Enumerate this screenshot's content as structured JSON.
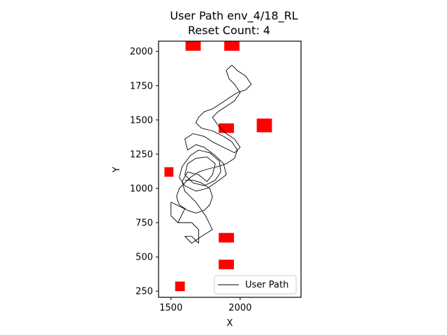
{
  "chart_data": {
    "type": "line",
    "title": "User Path env_4/18_RL",
    "subtitle": "Reset Count: 4",
    "xlabel": "X",
    "ylabel": "Y",
    "xlim": [
      1410,
      2440
    ],
    "ylim": [
      205,
      2075
    ],
    "xticks": [
      1500,
      2000
    ],
    "xtick_labels": [
      "1500",
      "2000"
    ],
    "yticks": [
      250,
      500,
      750,
      1000,
      1250,
      1500,
      1750,
      2000
    ],
    "ytick_labels": [
      "250",
      "500",
      "750",
      "1000",
      "1250",
      "1500",
      "1750",
      "2000"
    ],
    "grid": false,
    "legend": {
      "position": "lower-right",
      "entries": [
        "User Path"
      ]
    },
    "series": [
      {
        "name": "User Path",
        "color": "#000000",
        "points": [
          [
            1550,
            750
          ],
          [
            1500,
            800
          ],
          [
            1500,
            900
          ],
          [
            1600,
            850
          ],
          [
            1550,
            750
          ],
          [
            1650,
            750
          ],
          [
            1700,
            700
          ],
          [
            1700,
            600
          ],
          [
            1650,
            650
          ],
          [
            1600,
            650
          ],
          [
            1650,
            600
          ],
          [
            1720,
            650
          ],
          [
            1800,
            700
          ],
          [
            1750,
            800
          ],
          [
            1680,
            900
          ],
          [
            1600,
            980
          ],
          [
            1580,
            1050
          ],
          [
            1620,
            1120
          ],
          [
            1700,
            1100
          ],
          [
            1760,
            1050
          ],
          [
            1800,
            1100
          ],
          [
            1820,
            1180
          ],
          [
            1760,
            1230
          ],
          [
            1680,
            1220
          ],
          [
            1620,
            1180
          ],
          [
            1600,
            1100
          ],
          [
            1660,
            1040
          ],
          [
            1740,
            1020
          ],
          [
            1820,
            1060
          ],
          [
            1860,
            1120
          ],
          [
            1850,
            1200
          ],
          [
            1780,
            1260
          ],
          [
            1700,
            1280
          ],
          [
            1640,
            1240
          ],
          [
            1580,
            1160
          ],
          [
            1560,
            1080
          ],
          [
            1600,
            1020
          ],
          [
            1680,
            980
          ],
          [
            1760,
            1000
          ],
          [
            1820,
            1040
          ],
          [
            1900,
            1100
          ],
          [
            1880,
            1180
          ],
          [
            1820,
            1240
          ],
          [
            1740,
            1300
          ],
          [
            1680,
            1320
          ],
          [
            1620,
            1280
          ],
          [
            1600,
            1360
          ],
          [
            1660,
            1400
          ],
          [
            1740,
            1380
          ],
          [
            1800,
            1340
          ],
          [
            1880,
            1300
          ],
          [
            1960,
            1260
          ],
          [
            2000,
            1300
          ],
          [
            1960,
            1360
          ],
          [
            1900,
            1400
          ],
          [
            1840,
            1460
          ],
          [
            1800,
            1520
          ],
          [
            1840,
            1560
          ],
          [
            1900,
            1600
          ],
          [
            1960,
            1640
          ],
          [
            2000,
            1700
          ],
          [
            1960,
            1760
          ],
          [
            1920,
            1800
          ],
          [
            1900,
            1860
          ],
          [
            1940,
            1900
          ],
          [
            1980,
            1860
          ],
          [
            2040,
            1820
          ],
          [
            2080,
            1760
          ],
          [
            2040,
            1720
          ],
          [
            1980,
            1700
          ],
          [
            1920,
            1660
          ],
          [
            1860,
            1620
          ],
          [
            1800,
            1580
          ],
          [
            1740,
            1560
          ],
          [
            1700,
            1520
          ],
          [
            1680,
            1480
          ],
          [
            1720,
            1440
          ],
          [
            1800,
            1420
          ],
          [
            1880,
            1380
          ],
          [
            1940,
            1340
          ],
          [
            1980,
            1280
          ],
          [
            1960,
            1220
          ],
          [
            1900,
            1180
          ],
          [
            1840,
            1160
          ],
          [
            1760,
            1140
          ],
          [
            1700,
            1120
          ],
          [
            1640,
            1080
          ],
          [
            1600,
            1040
          ],
          [
            1560,
            1000
          ],
          [
            1540,
            940
          ],
          [
            1560,
            880
          ],
          [
            1620,
            840
          ],
          [
            1680,
            820
          ],
          [
            1740,
            840
          ],
          [
            1780,
            880
          ],
          [
            1800,
            940
          ],
          [
            1780,
            1000
          ],
          [
            1720,
            1040
          ],
          [
            1660,
            1060
          ],
          [
            1600,
            1060
          ]
        ]
      }
    ],
    "obstacles": [
      {
        "x": 1660,
        "y": 2040,
        "w": 110,
        "h": 70
      },
      {
        "x": 1940,
        "y": 2040,
        "w": 110,
        "h": 70
      },
      {
        "x": 2175,
        "y": 1460,
        "w": 110,
        "h": 100
      },
      {
        "x": 1900,
        "y": 1440,
        "w": 110,
        "h": 70
      },
      {
        "x": 1485,
        "y": 1120,
        "w": 65,
        "h": 70
      },
      {
        "x": 1900,
        "y": 640,
        "w": 110,
        "h": 70
      },
      {
        "x": 1900,
        "y": 445,
        "w": 110,
        "h": 70
      },
      {
        "x": 1565,
        "y": 285,
        "w": 70,
        "h": 70
      }
    ],
    "obstacle_color": "#ff0000"
  }
}
